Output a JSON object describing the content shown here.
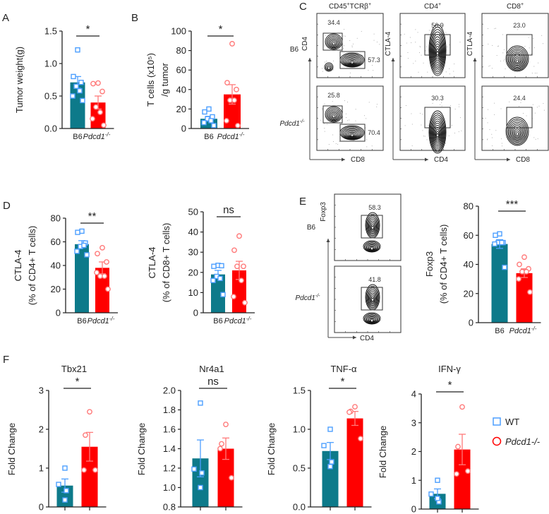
{
  "colors": {
    "wt_bar": "#0d7a8a",
    "ko_bar": "#ff0000",
    "wt_point": "#4d9fff",
    "ko_point": "#ff7a7a",
    "wt_legend": "#0d7a8a"
  },
  "panel_labels": [
    "A",
    "B",
    "C",
    "D",
    "E",
    "F"
  ],
  "groups": {
    "b6": "B6",
    "ko_base": "Pdcd1",
    "ko_sup": "-/-"
  },
  "flow_c": {
    "columns": [
      {
        "title_base": "CD45",
        "title_sup1": "+",
        "title_mid": "TCRβ",
        "title_sup2": "+",
        "ylabel": "CD4",
        "xlabel": "CD8"
      },
      {
        "title_base": "CD4",
        "title_sup1": "+",
        "title_mid": "",
        "title_sup2": "",
        "ylabel": "CTLA-4",
        "xlabel": "CD4"
      },
      {
        "title_base": "CD8",
        "title_sup1": "+",
        "title_mid": "",
        "title_sup2": "",
        "ylabel": "CTLA-4",
        "xlabel": "CD8"
      }
    ],
    "gates": {
      "b6": [
        [
          "34.4",
          "57.3"
        ],
        [
          "56.9"
        ],
        [
          "23.0"
        ]
      ],
      "ko": [
        [
          "25.8",
          "70.4"
        ],
        [
          "30.3"
        ],
        [
          "24.4"
        ]
      ]
    }
  },
  "flow_e": {
    "ylabel": "Foxp3",
    "xlabel": "CD4",
    "gates": {
      "b6": "58.3",
      "ko": "41.8"
    }
  },
  "legend": {
    "wt": "WT",
    "ko": "Pdcd1-/-"
  },
  "chart_data": [
    {
      "type": "bar",
      "panel": "A",
      "title": "",
      "ylabel": [
        "Tumor weight(g)"
      ],
      "ylim": [
        0,
        1.5
      ],
      "yticks": [
        0,
        0.5,
        1.0,
        1.5
      ],
      "ytick_labels": [
        "0.0",
        "0.5",
        "1.0",
        "1.5"
      ],
      "show_categories": true,
      "significance": "*",
      "series": [
        {
          "name": "B6",
          "mean": 0.71,
          "sem": 0.09,
          "points": [
            1.21,
            0.8,
            0.71,
            0.65,
            0.58,
            0.5,
            0.43
          ]
        },
        {
          "name": "Pdcd1-/-",
          "mean": 0.4,
          "sem": 0.1,
          "points": [
            0.7,
            0.69,
            0.57,
            0.33,
            0.25,
            0.15,
            0.05
          ]
        }
      ]
    },
    {
      "type": "bar",
      "panel": "B",
      "title": "",
      "ylabel": [
        "T cells (x10⁵)",
        "/g tumor"
      ],
      "ylim": [
        0,
        100
      ],
      "yticks": [
        0,
        20,
        40,
        60,
        80,
        100
      ],
      "ytick_labels": [
        "0",
        "20",
        "40",
        "60",
        "80",
        "100"
      ],
      "show_categories": true,
      "significance": "*",
      "series": [
        {
          "name": "B6",
          "mean": 10,
          "sem": 2.5,
          "points": [
            20,
            17,
            12,
            10,
            8,
            6,
            3
          ]
        },
        {
          "name": "Pdcd1-/-",
          "mean": 35,
          "sem": 10,
          "points": [
            87,
            47,
            40,
            29,
            29,
            8,
            3
          ]
        }
      ]
    },
    {
      "type": "bar",
      "panel": "D",
      "title": "",
      "ylabel": [
        "CTLA-4",
        "(% of CD4+ T cells)"
      ],
      "ylim": [
        0,
        80
      ],
      "yticks": [
        0,
        20,
        40,
        60,
        80
      ],
      "ytick_labels": [
        "0",
        "20",
        "40",
        "60",
        "80"
      ],
      "show_categories": true,
      "significance": "**",
      "series": [
        {
          "name": "B6",
          "mean": 58,
          "sem": 3,
          "points": [
            69,
            68,
            59,
            56,
            57,
            52,
            49
          ]
        },
        {
          "name": "Pdcd1-/-",
          "mean": 38,
          "sem": 5,
          "points": [
            55,
            50,
            43,
            31,
            31,
            34,
            20
          ]
        }
      ]
    },
    {
      "type": "bar",
      "panel": "D",
      "title": "",
      "ylabel": [
        "CTLA-4",
        "(% of CD8+ T cells)"
      ],
      "ylim": [
        0,
        50
      ],
      "yticks": [
        0,
        10,
        20,
        30,
        40,
        50
      ],
      "ytick_labels": [
        "0",
        "10",
        "20",
        "30",
        "40",
        "50"
      ],
      "show_categories": true,
      "significance": "ns",
      "series": [
        {
          "name": "B6",
          "mean": 19,
          "sem": 2,
          "points": [
            23.5,
            23,
            23.3,
            18,
            17,
            16,
            9
          ]
        },
        {
          "name": "Pdcd1-/-",
          "mean": 21,
          "sem": 4.5,
          "points": [
            38,
            31,
            23,
            23,
            16,
            8,
            5
          ]
        }
      ]
    },
    {
      "type": "bar",
      "panel": "E",
      "title": "",
      "ylabel": [
        "Foxp3",
        "(% of CD4+ T cells)"
      ],
      "ylim": [
        0,
        80
      ],
      "yticks": [
        0,
        20,
        40,
        60,
        80
      ],
      "ytick_labels": [
        "0",
        "20",
        "40",
        "60",
        "80"
      ],
      "show_categories": true,
      "significance": "***",
      "series": [
        {
          "name": "B6",
          "mean": 54,
          "sem": 3,
          "points": [
            61,
            60,
            55,
            55,
            55,
            54,
            38
          ]
        },
        {
          "name": "Pdcd1-/-",
          "mean": 34,
          "sem": 3,
          "points": [
            45,
            40,
            37,
            35,
            35,
            30,
            21
          ]
        }
      ]
    },
    {
      "type": "bar",
      "panel": "F",
      "title": "Tbx21",
      "ylabel": [
        "Fold Change"
      ],
      "ylim": [
        0,
        3
      ],
      "yticks": [
        0,
        1,
        2,
        3
      ],
      "ytick_labels": [
        "0",
        "1",
        "2",
        "3"
      ],
      "show_categories": false,
      "significance": "*",
      "series": [
        {
          "name": "WT",
          "mean": 0.55,
          "sem": 0.17,
          "points": [
            1.0,
            0.58,
            0.42,
            0.18
          ]
        },
        {
          "name": "Pdcd1-/-",
          "mean": 1.55,
          "sem": 0.37,
          "points": [
            2.45,
            1.85,
            0.95,
            0.95
          ]
        }
      ]
    },
    {
      "type": "bar",
      "panel": "F",
      "title": "Nr4a1",
      "ylabel": [
        "Fold Change"
      ],
      "ylim": [
        0.8,
        2.0
      ],
      "yticks": [
        0.8,
        1.0,
        1.2,
        1.4,
        1.6,
        1.8,
        2.0
      ],
      "ytick_labels": [
        "0.8",
        "1.0",
        "1.2",
        "1.4",
        "1.6",
        "1.8",
        "2.0"
      ],
      "show_categories": false,
      "significance": "ns",
      "series": [
        {
          "name": "WT",
          "mean": 1.3,
          "sem": 0.19,
          "points": [
            1.87,
            1.19,
            1.15,
            1.0
          ]
        },
        {
          "name": "Pdcd1-/-",
          "mean": 1.4,
          "sem": 0.11,
          "points": [
            1.65,
            1.45,
            1.4,
            1.1
          ]
        }
      ]
    },
    {
      "type": "bar",
      "panel": "F",
      "title": "TNF-α",
      "ylabel": [
        "Fold Change"
      ],
      "ylim": [
        0,
        1.5
      ],
      "yticks": [
        0,
        0.5,
        1.0,
        1.5
      ],
      "ytick_labels": [
        "0.0",
        "0.5",
        "1.0",
        "1.5"
      ],
      "show_categories": false,
      "significance": "*",
      "series": [
        {
          "name": "WT",
          "mean": 0.72,
          "sem": 0.11,
          "points": [
            1.0,
            0.79,
            0.58,
            0.52
          ]
        },
        {
          "name": "Pdcd1-/-",
          "mean": 1.14,
          "sem": 0.09,
          "points": [
            1.29,
            1.23,
            1.22,
            0.88
          ]
        }
      ]
    },
    {
      "type": "bar",
      "panel": "F",
      "title": "IFN-γ",
      "ylabel": [
        "Fold Change"
      ],
      "ylim": [
        0,
        4
      ],
      "yticks": [
        0,
        1,
        2,
        3,
        4
      ],
      "ytick_labels": [
        "0",
        "1",
        "2",
        "3",
        "4"
      ],
      "show_categories": false,
      "significance": "*",
      "series": [
        {
          "name": "WT",
          "mean": 0.53,
          "sem": 0.17,
          "points": [
            1.0,
            0.52,
            0.25,
            0.37
          ]
        },
        {
          "name": "Pdcd1-/-",
          "mean": 2.07,
          "sem": 0.53,
          "points": [
            3.55,
            2.17,
            1.22,
            1.32
          ]
        }
      ]
    }
  ]
}
